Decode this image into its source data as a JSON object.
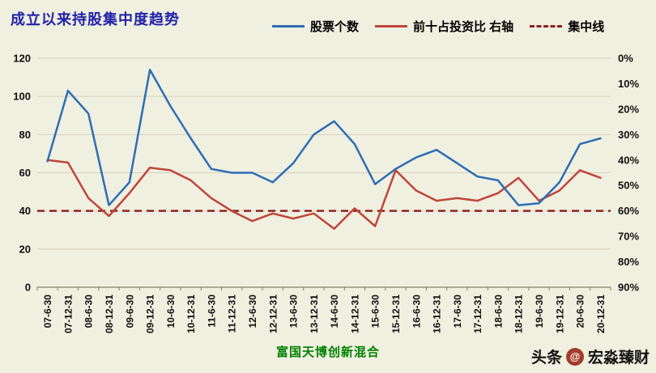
{
  "title": "成立以来持股集中度趋势",
  "legend": [
    {
      "label": "股票个数",
      "color": "#2e6db4",
      "dashed": false
    },
    {
      "label": "前十占投资比 右轴",
      "color": "#c0453a",
      "dashed": false
    },
    {
      "label": "集中线",
      "color": "#8e2323",
      "dashed": true
    }
  ],
  "footer": {
    "fund_name": "富国天博创新混合",
    "watermark_prefix": "头条",
    "watermark_at": "@",
    "watermark_account": "宏淼臻财"
  },
  "colors": {
    "background": "#f0f0e0",
    "title": "#2222aa",
    "gridline": "#d5d1bb",
    "axis": "#7f7f6a",
    "blue_series": "#2e6db4",
    "red_series": "#c0453a",
    "threshold": "#8e2323",
    "fund_name_green": "#008000"
  },
  "chart_data": {
    "type": "line",
    "categories": [
      "07-6-30",
      "07-12-31",
      "08-6-30",
      "08-12-31",
      "09-6-30",
      "09-12-31",
      "10-6-30",
      "10-12-31",
      "11-6-30",
      "11-12-31",
      "12-6-30",
      "12-12-31",
      "13-6-30",
      "13-12-31",
      "14-6-30",
      "14-12-31",
      "15-6-30",
      "15-12-31",
      "16-6-30",
      "16-12-31",
      "17-6-30",
      "17-12-31",
      "18-6-30",
      "18-12-31",
      "19-6-30",
      "19-12-31",
      "20-6-30",
      "20-12-31"
    ],
    "series": [
      {
        "name": "股票个数",
        "key": "stock-count",
        "axis": "left",
        "color": "#2e6db4",
        "values": [
          66,
          103,
          91,
          43,
          55,
          114,
          95,
          78,
          62,
          60,
          60,
          55,
          65,
          80,
          87,
          75,
          54,
          62,
          68,
          72,
          65,
          58,
          56,
          43,
          44,
          55,
          75,
          78
        ]
      },
      {
        "name": "前十占投资比 右轴",
        "key": "top10-ratio",
        "axis": "right",
        "color": "#c0453a",
        "values": [
          40,
          41,
          55,
          62,
          53,
          43,
          44,
          48,
          55,
          60,
          64,
          61,
          63,
          61,
          67,
          59,
          66,
          44,
          52,
          56,
          55,
          56,
          53,
          47,
          56,
          52,
          44,
          47
        ]
      },
      {
        "name": "集中线",
        "key": "concentration-threshold",
        "axis": "right",
        "color": "#8e2323",
        "dashed": true,
        "constant": 60
      }
    ],
    "left_axis": {
      "min": 0,
      "max": 120,
      "tick_step": 20,
      "tick_labels": [
        "0",
        "20",
        "40",
        "60",
        "80",
        "100",
        "120"
      ]
    },
    "right_axis": {
      "min": 0,
      "max": 90,
      "tick_step": 10,
      "inverted": true,
      "tick_labels": [
        "0%",
        "10%",
        "20%",
        "30%",
        "40%",
        "50%",
        "60%",
        "70%",
        "80%",
        "90%"
      ]
    },
    "grid": true,
    "legend_position": "top"
  }
}
